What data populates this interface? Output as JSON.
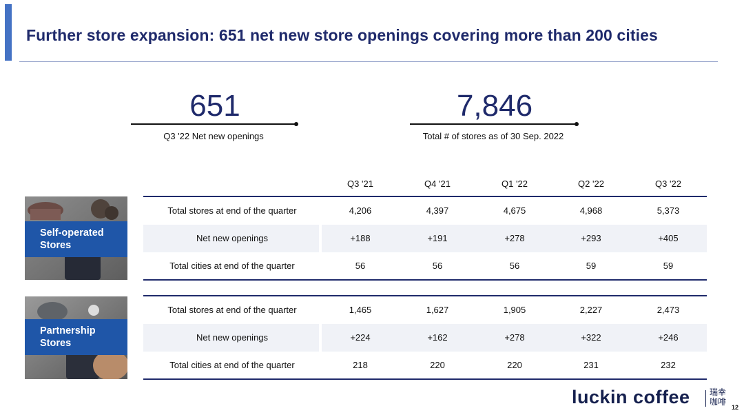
{
  "title": "Further store expansion: 651 net new store openings covering more than 200 cities",
  "kpis": [
    {
      "value": "651",
      "caption": "Q3 '22  Net new openings"
    },
    {
      "value": "7,846",
      "caption": "Total # of stores as of 30 Sep. 2022"
    }
  ],
  "columns": [
    "Q3 '21",
    "Q4 '21",
    "Q1 '22",
    "Q2 '22",
    "Q3 '22"
  ],
  "self_operated": {
    "label_line1": "Self-operated",
    "label_line2": "Stores",
    "rows": [
      {
        "label": "Total stores at end of the quarter",
        "values": [
          "4,206",
          "4,397",
          "4,675",
          "4,968",
          "5,373"
        ]
      },
      {
        "label": "Net new openings",
        "values": [
          "+188",
          "+191",
          "+278",
          "+293",
          "+405"
        ]
      },
      {
        "label": "Total cities at end of the quarter",
        "values": [
          "56",
          "56",
          "56",
          "59",
          "59"
        ]
      }
    ]
  },
  "partnership": {
    "label_line1": "Partnership",
    "label_line2": "Stores",
    "rows": [
      {
        "label": "Total stores at end of the quarter",
        "values": [
          "1,465",
          "1,627",
          "1,905",
          "2,227",
          "2,473"
        ]
      },
      {
        "label": "Net new openings",
        "values": [
          "+224",
          "+162",
          "+278",
          "+322",
          "+246"
        ]
      },
      {
        "label": "Total cities at end of the quarter",
        "values": [
          "218",
          "220",
          "220",
          "231",
          "232"
        ]
      }
    ]
  },
  "logo": {
    "text": "luckin coffee",
    "cn_line1": "瑞幸",
    "cn_line2": "咖啡"
  },
  "page_number": "12",
  "colors": {
    "navy": "#1f2a6b",
    "accent": "#4472c4",
    "tag_blue": "#1f56a8",
    "row_shade": "#f0f2f7"
  }
}
